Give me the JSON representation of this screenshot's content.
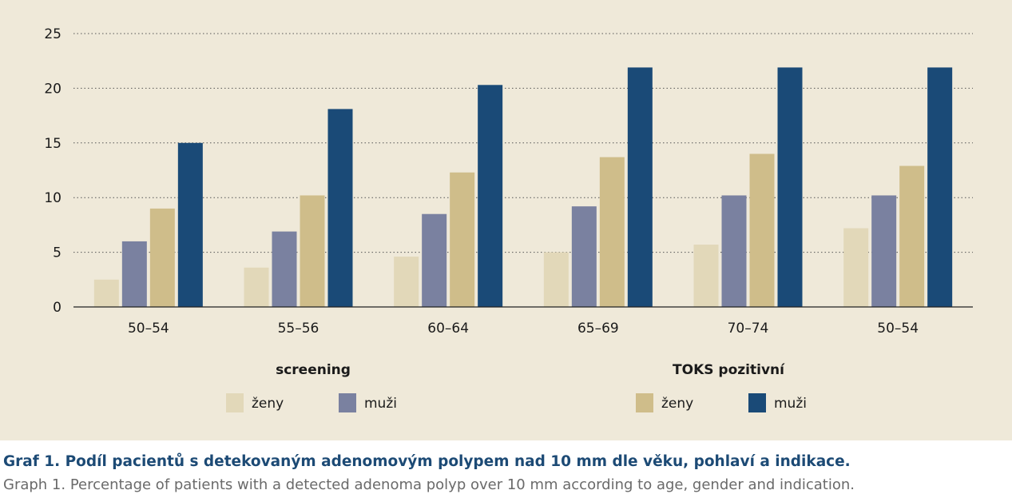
{
  "chart_data": {
    "type": "bar",
    "categories": [
      "50–54",
      "55–56",
      "60–64",
      "65–69",
      "70–74",
      "50–54"
    ],
    "series": [
      {
        "name": "ženy",
        "group": "screening",
        "color": "#e2d8b9",
        "values": [
          2.5,
          3.6,
          4.6,
          5.0,
          5.7,
          7.2
        ]
      },
      {
        "name": "muži",
        "group": "screening",
        "color": "#7a81a0",
        "values": [
          6.0,
          6.9,
          8.5,
          9.2,
          10.2,
          10.2
        ]
      },
      {
        "name": "ženy",
        "group": "TOKS pozitivní",
        "color": "#cfbd8a",
        "values": [
          9.0,
          10.2,
          12.3,
          13.7,
          14.0,
          12.9
        ]
      },
      {
        "name": "muži",
        "group": "TOKS pozitivní",
        "color": "#1a4a77",
        "values": [
          15.0,
          18.1,
          20.3,
          21.9,
          21.9,
          21.9
        ]
      }
    ],
    "yticks": [
      "0",
      "5",
      "10",
      "15",
      "20",
      "25"
    ],
    "ylim": [
      0,
      25
    ],
    "grid": true,
    "legend_groups": [
      {
        "title": "screening",
        "items": [
          {
            "label": "ženy",
            "color": "#e2d8b9"
          },
          {
            "label": "muži",
            "color": "#7a81a0"
          }
        ]
      },
      {
        "title": "TOKS pozitivní",
        "items": [
          {
            "label": "ženy",
            "color": "#cfbd8a"
          },
          {
            "label": "muži",
            "color": "#1a4a77"
          }
        ]
      }
    ]
  },
  "caption": {
    "title_cz": "Graf 1. Podíl pacientů s detekovaným adenomovým polypem nad 10 mm dle věku, pohlaví a indikace.",
    "title_en": "Graph 1. Percentage of patients with a detected adenoma polyp over 10 mm according to age, gender and indication."
  }
}
